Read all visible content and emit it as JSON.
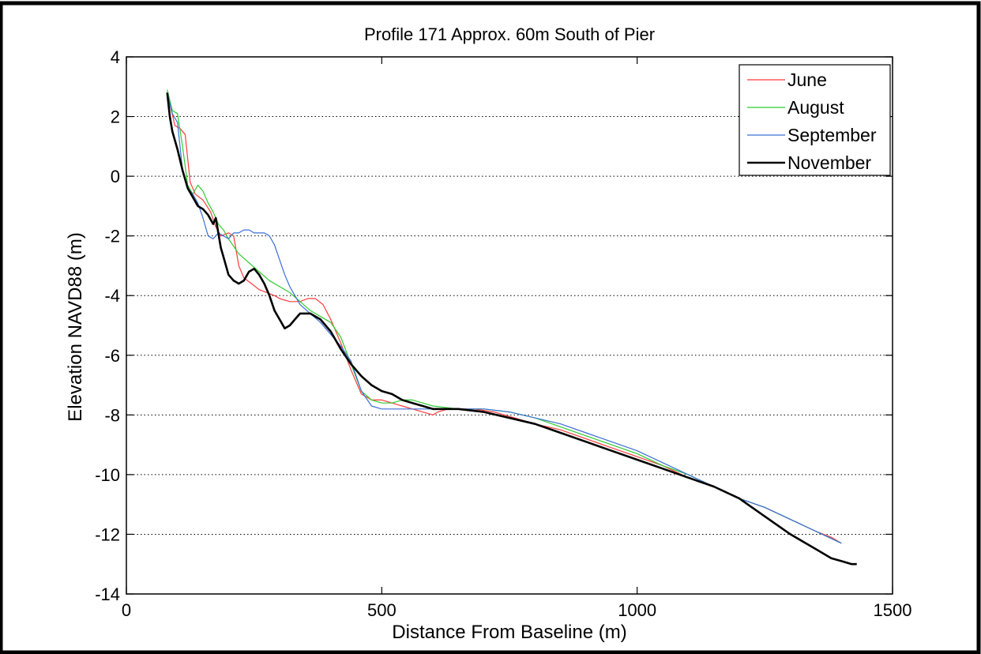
{
  "chart_data": {
    "type": "line",
    "title": "Profile 171 Approx. 60m South of Pier",
    "xlabel": "Distance From Baseline (m)",
    "ylabel": "Elevation NAVD88 (m)",
    "xlim": [
      0,
      1500
    ],
    "ylim": [
      -14,
      4
    ],
    "xticks": [
      0,
      500,
      1000,
      1500
    ],
    "yticks": [
      -14,
      -12,
      -10,
      -8,
      -6,
      -4,
      -2,
      0,
      2,
      4
    ],
    "grid": "horizontal-dotted",
    "legend_position": "top-right",
    "series": [
      {
        "name": "June",
        "color": "#ff3b3b",
        "x": [
          80,
          95,
          105,
          115,
          125,
          135,
          150,
          165,
          175,
          185,
          200,
          210,
          220,
          230,
          245,
          260,
          275,
          290,
          300,
          320,
          340,
          355,
          370,
          385,
          400,
          420,
          440,
          460,
          480,
          500,
          520,
          540,
          560,
          580,
          600,
          610,
          630,
          650,
          680,
          720,
          760,
          800,
          850,
          900,
          950,
          1000,
          1050,
          1100,
          1150,
          1200,
          1250,
          1300,
          1350,
          1380,
          1400
        ],
        "y": [
          2.8,
          1.7,
          1.6,
          1.4,
          -0.2,
          -0.6,
          -0.8,
          -1.2,
          -1.7,
          -2.0,
          -1.9,
          -2.0,
          -3.0,
          -3.4,
          -3.6,
          -3.8,
          -3.9,
          -4.0,
          -4.1,
          -4.2,
          -4.2,
          -4.1,
          -4.1,
          -4.3,
          -4.8,
          -5.6,
          -6.5,
          -7.3,
          -7.5,
          -7.5,
          -7.6,
          -7.7,
          -7.8,
          -7.9,
          -8.0,
          -7.9,
          -7.8,
          -7.8,
          -7.8,
          -7.9,
          -8.1,
          -8.3,
          -8.5,
          -8.8,
          -9.1,
          -9.4,
          -9.7,
          -10.1,
          -10.4,
          -10.8,
          -11.1,
          -11.5,
          -11.9,
          -12.1,
          -12.3
        ]
      },
      {
        "name": "August",
        "color": "#2ecc2e",
        "x": [
          80,
          90,
          100,
          110,
          120,
          130,
          140,
          150,
          160,
          170,
          180,
          190,
          200,
          220,
          240,
          260,
          280,
          300,
          320,
          340,
          360,
          380,
          400,
          420,
          440,
          460,
          480,
          500,
          520,
          540,
          560,
          580,
          600,
          650,
          700,
          750,
          800,
          850,
          900,
          950,
          1000,
          1050,
          1100,
          1150,
          1200,
          1250,
          1300,
          1350,
          1400
        ],
        "y": [
          2.9,
          2.2,
          2.1,
          1.0,
          -0.3,
          -0.6,
          -0.3,
          -0.5,
          -0.9,
          -1.2,
          -1.6,
          -1.8,
          -2.1,
          -2.6,
          -2.9,
          -3.2,
          -3.5,
          -3.7,
          -3.9,
          -4.2,
          -4.5,
          -4.7,
          -4.9,
          -5.4,
          -6.3,
          -7.2,
          -7.5,
          -7.6,
          -7.6,
          -7.5,
          -7.5,
          -7.6,
          -7.7,
          -7.8,
          -7.8,
          -7.9,
          -8.1,
          -8.4,
          -8.7,
          -9.0,
          -9.3,
          -9.7,
          -10.0,
          -10.4,
          -10.8,
          -11.1,
          -11.5,
          -11.9,
          -12.3
        ]
      },
      {
        "name": "September",
        "color": "#3b6fd6",
        "x": [
          80,
          90,
          100,
          110,
          120,
          130,
          140,
          150,
          160,
          170,
          180,
          190,
          200,
          210,
          220,
          230,
          240,
          250,
          260,
          270,
          280,
          290,
          300,
          310,
          320,
          340,
          360,
          380,
          400,
          420,
          440,
          460,
          480,
          500,
          520,
          540,
          560,
          580,
          600,
          650,
          700,
          750,
          800,
          850,
          900,
          950,
          1000,
          1050,
          1100,
          1150,
          1200,
          1250,
          1300,
          1350,
          1400
        ],
        "y": [
          2.8,
          2.1,
          1.8,
          0.2,
          -0.4,
          -0.6,
          -0.9,
          -1.4,
          -2.0,
          -2.1,
          -1.9,
          -2.0,
          -2.1,
          -1.9,
          -1.9,
          -1.8,
          -1.8,
          -1.9,
          -1.9,
          -1.9,
          -2.0,
          -2.3,
          -2.8,
          -3.3,
          -3.7,
          -4.3,
          -4.6,
          -4.9,
          -5.3,
          -5.7,
          -6.2,
          -7.2,
          -7.7,
          -7.8,
          -7.8,
          -7.8,
          -7.8,
          -7.8,
          -7.8,
          -7.8,
          -7.8,
          -7.9,
          -8.1,
          -8.3,
          -8.6,
          -8.9,
          -9.2,
          -9.6,
          -10.0,
          -10.4,
          -10.8,
          -11.1,
          -11.5,
          -11.9,
          -12.3
        ]
      },
      {
        "name": "November",
        "color": "#000000",
        "x": [
          80,
          85,
          90,
          100,
          110,
          120,
          130,
          140,
          150,
          160,
          170,
          175,
          180,
          185,
          190,
          200,
          210,
          220,
          230,
          240,
          250,
          260,
          270,
          280,
          290,
          300,
          310,
          320,
          330,
          340,
          350,
          360,
          380,
          400,
          420,
          440,
          460,
          480,
          500,
          520,
          540,
          560,
          580,
          600,
          620,
          650,
          700,
          750,
          800,
          850,
          900,
          950,
          1000,
          1050,
          1100,
          1150,
          1200,
          1250,
          1300,
          1350,
          1380,
          1400,
          1420,
          1430
        ],
        "y": [
          2.8,
          2.0,
          1.5,
          0.9,
          0.2,
          -0.4,
          -0.7,
          -1.0,
          -1.1,
          -1.3,
          -1.6,
          -1.4,
          -1.9,
          -2.4,
          -2.7,
          -3.3,
          -3.5,
          -3.6,
          -3.5,
          -3.2,
          -3.1,
          -3.3,
          -3.6,
          -4.0,
          -4.5,
          -4.8,
          -5.1,
          -5.0,
          -4.8,
          -4.6,
          -4.6,
          -4.6,
          -4.8,
          -5.2,
          -5.8,
          -6.3,
          -6.7,
          -7.0,
          -7.2,
          -7.3,
          -7.5,
          -7.6,
          -7.7,
          -7.8,
          -7.8,
          -7.8,
          -7.9,
          -8.1,
          -8.3,
          -8.6,
          -8.9,
          -9.2,
          -9.5,
          -9.8,
          -10.1,
          -10.4,
          -10.8,
          -11.4,
          -12.0,
          -12.5,
          -12.8,
          -12.9,
          -13.0,
          -13.0
        ]
      }
    ]
  }
}
